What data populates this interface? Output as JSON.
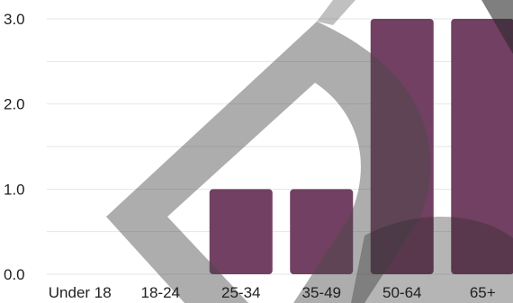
{
  "chart_data": {
    "type": "bar",
    "title": "",
    "xlabel": "",
    "ylabel": "",
    "categories": [
      "Under 18",
      "18-24",
      "25-34",
      "35-49",
      "50-64",
      "65+"
    ],
    "values": [
      0,
      0,
      1,
      1,
      3,
      3
    ],
    "ylim": [
      0,
      3
    ],
    "y_ticks": [
      "0.0",
      "1.0",
      "2.0",
      "3.0"
    ],
    "grid": true,
    "bar_color": "#724062",
    "grid_color": "#e6e6e6",
    "watermark": "large gray chevron/arrow shape overlaid across chart"
  }
}
